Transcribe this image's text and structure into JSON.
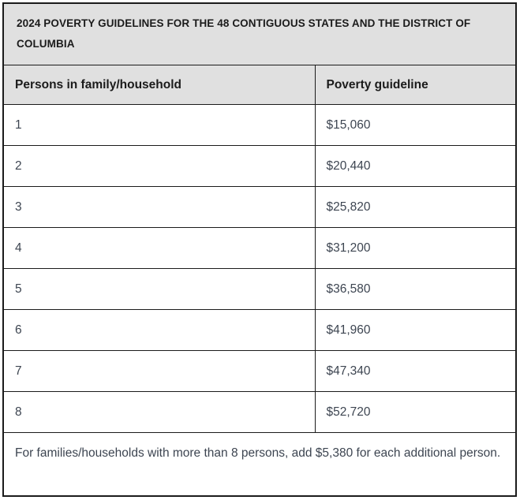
{
  "title": "2024 POVERTY GUIDELINES FOR THE 48 CONTIGUOUS STATES AND THE DISTRICT OF COLUMBIA",
  "table": {
    "columns": [
      "Persons in family/household",
      "Poverty guideline"
    ],
    "rows": [
      {
        "persons": "1",
        "guideline": "$15,060"
      },
      {
        "persons": "2",
        "guideline": "$20,440"
      },
      {
        "persons": "3",
        "guideline": "$25,820"
      },
      {
        "persons": "4",
        "guideline": "$31,200"
      },
      {
        "persons": "5",
        "guideline": "$36,580"
      },
      {
        "persons": "6",
        "guideline": "$41,960"
      },
      {
        "persons": "7",
        "guideline": "$47,340"
      },
      {
        "persons": "8",
        "guideline": "$52,720"
      }
    ],
    "footnote": "For families/households with more than 8 persons, add $5,380 for each additional person."
  },
  "colors": {
    "band_background": "#e0e0e0",
    "border": "#1b1b1b",
    "body_text": "#3d4551",
    "heading_text": "#1b1b1b",
    "row_background": "#ffffff"
  }
}
